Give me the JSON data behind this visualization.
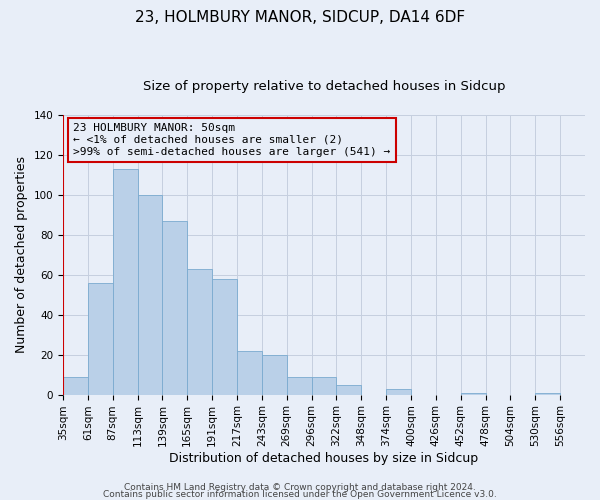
{
  "title": "23, HOLMBURY MANOR, SIDCUP, DA14 6DF",
  "subtitle": "Size of property relative to detached houses in Sidcup",
  "xlabel": "Distribution of detached houses by size in Sidcup",
  "ylabel": "Number of detached properties",
  "bin_labels": [
    "35sqm",
    "61sqm",
    "87sqm",
    "113sqm",
    "139sqm",
    "165sqm",
    "191sqm",
    "217sqm",
    "243sqm",
    "269sqm",
    "296sqm",
    "322sqm",
    "348sqm",
    "374sqm",
    "400sqm",
    "426sqm",
    "452sqm",
    "478sqm",
    "504sqm",
    "530sqm",
    "556sqm"
  ],
  "bar_heights": [
    9,
    56,
    113,
    100,
    87,
    63,
    58,
    22,
    20,
    9,
    9,
    5,
    0,
    3,
    0,
    0,
    1,
    0,
    0,
    1,
    0
  ],
  "bar_color": "#bad0e8",
  "bar_edge_color": "#7aaacf",
  "highlight_line_color": "#cc0000",
  "ylim": [
    0,
    140
  ],
  "yticks": [
    0,
    20,
    40,
    60,
    80,
    100,
    120,
    140
  ],
  "annotation_line1": "23 HOLMBURY MANOR: 50sqm",
  "annotation_line2": "← <1% of detached houses are smaller (2)",
  "annotation_line3": ">99% of semi-detached houses are larger (541) →",
  "annotation_box_color": "#cc0000",
  "footer_line1": "Contains HM Land Registry data © Crown copyright and database right 2024.",
  "footer_line2": "Contains public sector information licensed under the Open Government Licence v3.0.",
  "background_color": "#e8eef8",
  "grid_color": "#c5cfdf",
  "title_fontsize": 11,
  "subtitle_fontsize": 9.5,
  "axis_label_fontsize": 9,
  "tick_fontsize": 7.5,
  "annotation_fontsize": 8,
  "footer_fontsize": 6.5
}
